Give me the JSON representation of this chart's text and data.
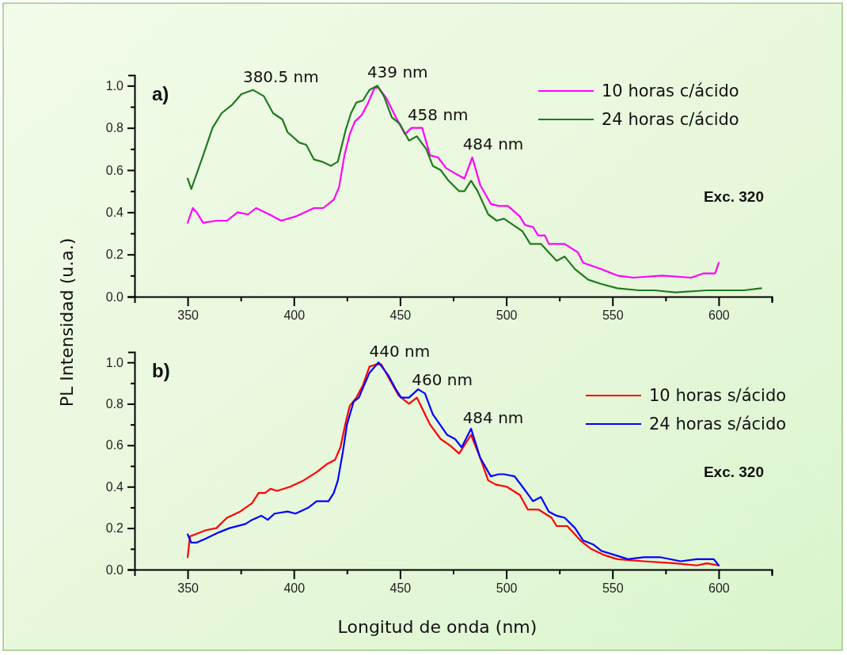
{
  "chart_data": [
    {
      "type": "line",
      "xlim": [
        325,
        625
      ],
      "ylim": [
        0,
        1.05
      ],
      "xticks": [
        350,
        {
          "value": 375,
          "label": null
        },
        400,
        {
          "value": 425,
          "label": null
        },
        450,
        {
          "value": 475,
          "label": null
        },
        500,
        {
          "value": 525,
          "label": null
        },
        550,
        {
          "value": 575,
          "label": null
        },
        600,
        {
          "value": 625,
          "label": null
        }
      ],
      "yticks": [
        {
          "value": 0,
          "label": "0.0"
        },
        {
          "value": 0.1,
          "label": null
        },
        {
          "value": 0.2,
          "label": "0.2"
        },
        {
          "value": 0.3,
          "label": null
        },
        {
          "value": 0.4,
          "label": "0.4"
        },
        {
          "value": 0.5,
          "label": null
        },
        {
          "value": 0.6,
          "label": "0.6"
        },
        {
          "value": 0.7,
          "label": null
        },
        {
          "value": 0.8,
          "label": "0.8"
        },
        {
          "value": 0.9,
          "label": null
        },
        {
          "value": 1.0,
          "label": "1.0"
        }
      ],
      "ylabel": "PL Intensidad (u.a.)",
      "legend": "top right",
      "grid": false,
      "marker": "none",
      "line_style": "solid",
      "annotations": [
        "a)",
        "Exc. 320",
        {
          "text": "380.5 nm",
          "x": 380.5,
          "y": 0.98
        },
        {
          "text": "439 nm",
          "x": 439,
          "y": 1.0
        },
        {
          "text": "458 nm",
          "x": 458,
          "y": 0.8
        },
        {
          "text": "484 nm",
          "x": 484,
          "y": 0.66
        }
      ],
      "series": [
        {
          "name": "10 horas c/ácido",
          "color": "#ff00ff",
          "x": [
            350,
            352.4,
            354.2,
            357.3,
            363.5,
            368.5,
            373.5,
            378.4,
            382.2,
            388.4,
            394,
            400.8,
            409.5,
            413.8,
            418.8,
            421.3,
            423.8,
            426.3,
            428.7,
            431.9,
            435,
            438,
            439.9,
            443.6,
            448,
            452.3,
            455.4,
            460.4,
            464.1,
            467.9,
            471.6,
            476.6,
            480.3,
            484,
            487.7,
            492.7,
            496.4,
            500.8,
            506.4,
            508.8,
            512.6,
            515,
            518.2,
            520,
            527.5,
            533.7,
            536.2,
            544.8,
            552.3,
            559.8,
            573.4,
            587.1,
            592.7,
            598.3,
            600
          ],
          "values": [
            0.35,
            0.42,
            0.4,
            0.35,
            0.36,
            0.36,
            0.4,
            0.39,
            0.42,
            0.39,
            0.36,
            0.38,
            0.42,
            0.42,
            0.46,
            0.52,
            0.67,
            0.77,
            0.83,
            0.86,
            0.92,
            0.99,
            0.99,
            0.94,
            0.85,
            0.77,
            0.8,
            0.8,
            0.67,
            0.66,
            0.61,
            0.58,
            0.56,
            0.66,
            0.53,
            0.44,
            0.43,
            0.43,
            0.38,
            0.34,
            0.33,
            0.29,
            0.29,
            0.25,
            0.25,
            0.21,
            0.16,
            0.13,
            0.1,
            0.09,
            0.1,
            0.09,
            0.11,
            0.11,
            0.16
          ]
        },
        {
          "name": "24 horas c/ácido",
          "color": "#1f7a1f",
          "x": [
            350,
            351.7,
            357.3,
            361.7,
            366,
            371,
            375.3,
            380.7,
            385.9,
            390.2,
            394.6,
            397,
            402.6,
            405.8,
            409.5,
            413.2,
            417.5,
            420.7,
            424.4,
            426.9,
            429.4,
            432.5,
            435.6,
            439.3,
            442.4,
            446.1,
            449.8,
            454.2,
            457.9,
            462.3,
            465.4,
            469.1,
            472.8,
            477.8,
            480.3,
            483.4,
            486.5,
            491.5,
            495.5,
            498.9,
            507.6,
            511.3,
            516.3,
            523.7,
            527.5,
            532.4,
            538.6,
            544.8,
            552.3,
            562.2,
            569.7,
            579.6,
            594.5,
            604.5,
            611.9,
            620
          ],
          "values": [
            0.56,
            0.51,
            0.67,
            0.8,
            0.87,
            0.91,
            0.96,
            0.98,
            0.95,
            0.87,
            0.84,
            0.78,
            0.73,
            0.72,
            0.65,
            0.64,
            0.62,
            0.64,
            0.79,
            0.87,
            0.92,
            0.93,
            0.98,
            1.0,
            0.95,
            0.85,
            0.82,
            0.74,
            0.76,
            0.7,
            0.62,
            0.6,
            0.55,
            0.5,
            0.5,
            0.55,
            0.5,
            0.39,
            0.36,
            0.37,
            0.31,
            0.25,
            0.25,
            0.17,
            0.19,
            0.13,
            0.08,
            0.06,
            0.04,
            0.03,
            0.03,
            0.02,
            0.03,
            0.03,
            0.03,
            0.04
          ]
        }
      ]
    },
    {
      "type": "line",
      "xlim": [
        325,
        625
      ],
      "ylim": [
        0,
        1.05
      ],
      "xticks": [
        350,
        {
          "value": 375,
          "label": null
        },
        400,
        {
          "value": 425,
          "label": null
        },
        450,
        {
          "value": 475,
          "label": null
        },
        500,
        {
          "value": 525,
          "label": null
        },
        550,
        {
          "value": 575,
          "label": null
        },
        600,
        {
          "value": 625,
          "label": null
        }
      ],
      "yticks": [
        {
          "value": 0,
          "label": "0.0"
        },
        {
          "value": 0.1,
          "label": null
        },
        {
          "value": 0.2,
          "label": "0.2"
        },
        {
          "value": 0.3,
          "label": null
        },
        {
          "value": 0.4,
          "label": "0.4"
        },
        {
          "value": 0.5,
          "label": null
        },
        {
          "value": 0.6,
          "label": "0.6"
        },
        {
          "value": 0.7,
          "label": null
        },
        {
          "value": 0.8,
          "label": "0.8"
        },
        {
          "value": 0.9,
          "label": null
        },
        {
          "value": 1.0,
          "label": "1.0"
        }
      ],
      "xlabel": "Longitud de onda (nm)",
      "legend": "right",
      "grid": false,
      "marker": "none",
      "line_style": "solid",
      "annotations": [
        "b)",
        "Exc. 320",
        {
          "text": "440 nm",
          "x": 440,
          "y": 0.99
        },
        {
          "text": "460 nm",
          "x": 460,
          "y": 0.85
        },
        {
          "text": "484 nm",
          "x": 484,
          "y": 0.67
        }
      ],
      "series": [
        {
          "name": "10 horas s/ácido",
          "color": "#ff0000",
          "x": [
            350,
            351.1,
            353.6,
            358.6,
            363.5,
            368.5,
            374.7,
            380.3,
            383.4,
            386.5,
            389,
            392.1,
            398.3,
            404.5,
            410.7,
            415.7,
            419.4,
            421.9,
            424.4,
            426.3,
            429.4,
            432.5,
            435.6,
            438.7,
            441.2,
            445.5,
            449.3,
            454.2,
            457.9,
            464.1,
            469.1,
            473.4,
            477.8,
            483.4,
            487.7,
            491.5,
            495.2,
            500.2,
            506.4,
            510.1,
            515.1,
            521.3,
            523.7,
            528.7,
            534.9,
            539.9,
            546.1,
            552.3,
            564.7,
            579.6,
            589.6,
            594.5,
            600
          ],
          "values": [
            0.06,
            0.16,
            0.17,
            0.19,
            0.2,
            0.25,
            0.28,
            0.32,
            0.37,
            0.37,
            0.39,
            0.38,
            0.4,
            0.43,
            0.47,
            0.51,
            0.53,
            0.59,
            0.71,
            0.79,
            0.83,
            0.89,
            0.98,
            0.99,
            0.99,
            0.91,
            0.84,
            0.8,
            0.83,
            0.7,
            0.63,
            0.6,
            0.56,
            0.65,
            0.54,
            0.43,
            0.41,
            0.4,
            0.36,
            0.29,
            0.29,
            0.25,
            0.21,
            0.21,
            0.14,
            0.1,
            0.07,
            0.05,
            0.04,
            0.03,
            0.02,
            0.03,
            0.02
          ]
        },
        {
          "name": "24 horas s/ácido",
          "color": "#0000ff",
          "x": [
            350,
            351.7,
            354.2,
            358.6,
            364.8,
            369.7,
            377.2,
            380.3,
            384.7,
            387.7,
            390.9,
            397,
            400.8,
            407,
            410.7,
            416.3,
            418.8,
            420.7,
            423.1,
            425,
            428.1,
            430.6,
            433.1,
            435.6,
            439.9,
            444.3,
            448,
            450.5,
            454.2,
            458.5,
            461.7,
            465.4,
            472.2,
            475.9,
            479,
            483.4,
            487.7,
            492.7,
            496.4,
            498.9,
            503.9,
            507.6,
            512.6,
            516.3,
            520,
            523.7,
            527.5,
            532.4,
            536.2,
            541.1,
            544.8,
            551.1,
            557.3,
            564.7,
            572.2,
            582.1,
            589.6,
            597.7,
            600
          ],
          "values": [
            0.17,
            0.13,
            0.13,
            0.15,
            0.18,
            0.2,
            0.22,
            0.24,
            0.26,
            0.24,
            0.27,
            0.28,
            0.27,
            0.3,
            0.33,
            0.33,
            0.37,
            0.43,
            0.57,
            0.7,
            0.81,
            0.83,
            0.89,
            0.95,
            1.0,
            0.94,
            0.87,
            0.83,
            0.83,
            0.87,
            0.85,
            0.75,
            0.65,
            0.63,
            0.59,
            0.68,
            0.54,
            0.45,
            0.46,
            0.46,
            0.45,
            0.4,
            0.33,
            0.35,
            0.28,
            0.26,
            0.25,
            0.2,
            0.14,
            0.12,
            0.09,
            0.07,
            0.05,
            0.06,
            0.06,
            0.04,
            0.05,
            0.05,
            0.02
          ]
        }
      ]
    }
  ]
}
